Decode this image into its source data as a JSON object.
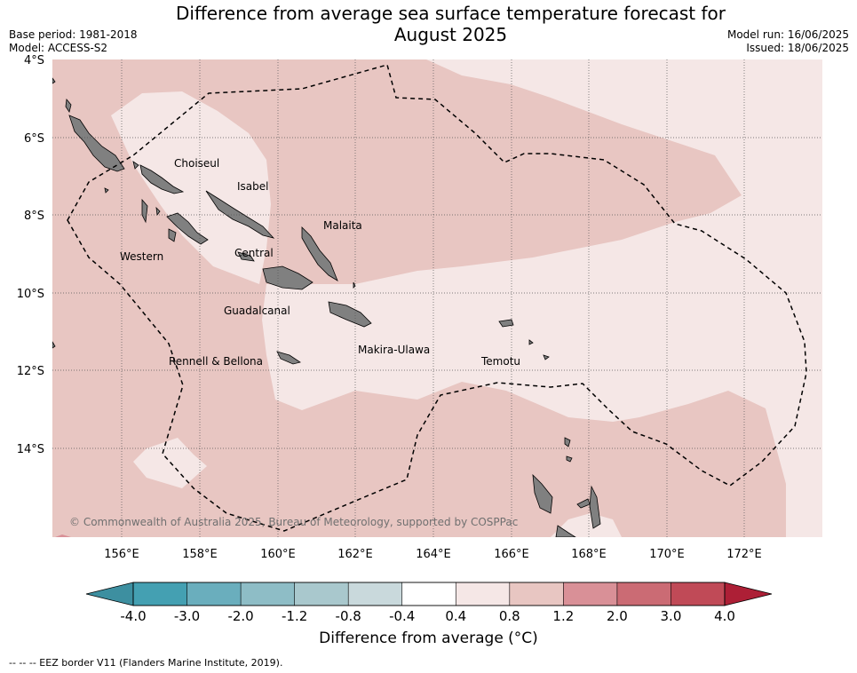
{
  "title_line1": "Difference from average sea surface temperature forecast for",
  "title_line2": "August 2025",
  "base_period": "Base period: 1981-2018",
  "model": "Model: ACCESS-S2",
  "model_run": "Model run: 16/06/2025",
  "issued": "Issued: 18/06/2025",
  "lat_labels": [
    "4°S",
    "6°S",
    "8°S",
    "10°S",
    "12°S",
    "14°S"
  ],
  "lon_labels": [
    "156°E",
    "158°E",
    "160°E",
    "162°E",
    "164°E",
    "166°E",
    "168°E",
    "170°E",
    "172°E"
  ],
  "province_labels": {
    "choiseul": "Choiseul",
    "isabel": "Isabel",
    "malaita": "Malaita",
    "western": "Western",
    "central": "Central",
    "guadalcanal": "Guadalcanal",
    "rennell": "Rennell & Bellona",
    "makira": "Makira-Ulawa",
    "temotu": "Temotu"
  },
  "copyright": "© Commonwealth of Australia 2025, Bureau of Meteorology, supported by COSPPac",
  "colorbar": {
    "ticks": [
      "-4.0",
      "-3.0",
      "-2.0",
      "-1.2",
      "-0.8",
      "-0.4",
      "0.4",
      "0.8",
      "1.2",
      "2.0",
      "3.0",
      "4.0"
    ],
    "colors": [
      "#3d8fa0",
      "#44a0b2",
      "#6aaebd",
      "#8ebdc6",
      "#a9c8cd",
      "#c9d9dc",
      "#ffffff",
      "#f5e7e6",
      "#e8c6c2",
      "#d99097",
      "#cb6b74",
      "#c04a57",
      "#ad1f36"
    ],
    "title": "Difference from average (°C)"
  },
  "footnote": "--  --  -- EEZ border V11 (Flanders Marine Institute, 2019)."
}
